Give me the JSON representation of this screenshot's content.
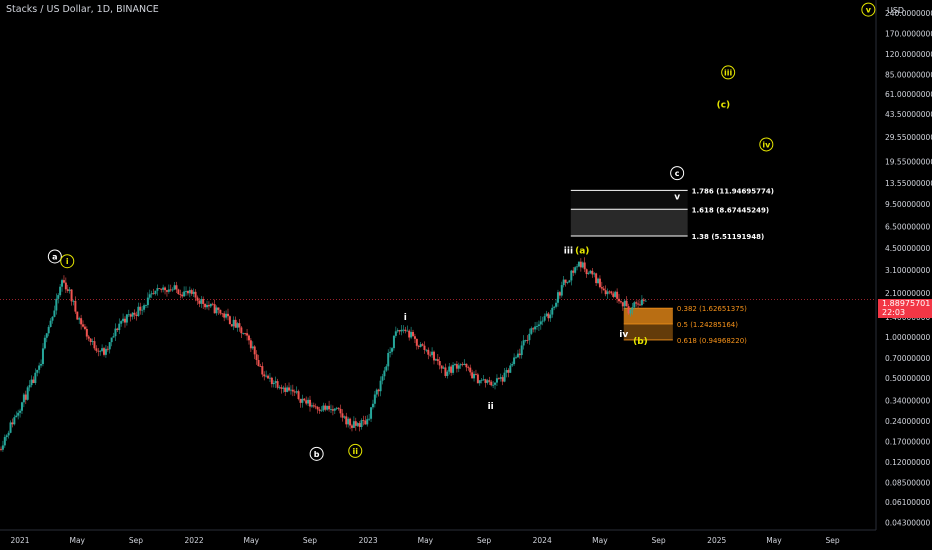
{
  "header": {
    "title": "Stacks / US Dollar, 1D, BINANCE"
  },
  "price_scale": {
    "currency": "USD"
  },
  "last_price": {
    "value": "1.88975701",
    "countdown": "22:03"
  },
  "colors": {
    "background": "#000000",
    "up": "#26a69a",
    "down": "#ef5350",
    "price_line": "#f23645",
    "wave_yellow": "#e6e600",
    "wave_white": "#ffffff",
    "fib_orange": "#f7931a",
    "text": "#d1d4dc"
  },
  "chart_data": {
    "type": "candlestick",
    "y_scale": "log",
    "ylim": [
      0.038,
      300
    ],
    "xlim": [
      "2020-11-20",
      "2025-12-01"
    ],
    "y_ticks": [
      "240.00000000",
      "170.00000000",
      "120.00000000",
      "85.00000000",
      "61.00000000",
      "43.50000000",
      "29.55000000",
      "19.55000000",
      "13.55000000",
      "9.50000000",
      "6.50000000",
      "4.50000000",
      "3.10000000",
      "2.10000000",
      "1.40000000",
      "1.00000000",
      "0.70000000",
      "0.50000000",
      "0.34000000",
      "0.24000000",
      "0.17000000",
      "0.12000000",
      "0.08500000",
      "0.06100000",
      "0.04300000"
    ],
    "x_ticks": [
      {
        "label": "2021",
        "date": "2021-01-01"
      },
      {
        "label": "May",
        "date": "2021-05-01"
      },
      {
        "label": "Sep",
        "date": "2021-09-01"
      },
      {
        "label": "2022",
        "date": "2022-01-01"
      },
      {
        "label": "May",
        "date": "2022-05-01"
      },
      {
        "label": "Sep",
        "date": "2022-09-01"
      },
      {
        "label": "2023",
        "date": "2023-01-01"
      },
      {
        "label": "May",
        "date": "2023-05-01"
      },
      {
        "label": "Sep",
        "date": "2023-09-01"
      },
      {
        "label": "2024",
        "date": "2024-01-01"
      },
      {
        "label": "May",
        "date": "2024-05-01"
      },
      {
        "label": "Sep",
        "date": "2024-09-01"
      },
      {
        "label": "2025",
        "date": "2025-01-01"
      },
      {
        "label": "May",
        "date": "2025-05-01"
      },
      {
        "label": "Sep",
        "date": "2025-09-01"
      }
    ],
    "price_path": [
      {
        "date": "2020-11-20",
        "price": 0.15
      },
      {
        "date": "2021-01-01",
        "price": 0.3
      },
      {
        "date": "2021-02-15",
        "price": 0.6
      },
      {
        "date": "2021-03-01",
        "price": 1.2
      },
      {
        "date": "2021-03-15",
        "price": 1.5
      },
      {
        "date": "2021-04-01",
        "price": 2.6
      },
      {
        "date": "2021-04-15",
        "price": 2.2
      },
      {
        "date": "2021-05-01",
        "price": 1.5
      },
      {
        "date": "2021-06-01",
        "price": 0.9
      },
      {
        "date": "2021-07-01",
        "price": 0.75
      },
      {
        "date": "2021-08-01",
        "price": 1.3
      },
      {
        "date": "2021-09-01",
        "price": 1.5
      },
      {
        "date": "2021-10-01",
        "price": 1.9
      },
      {
        "date": "2021-11-01",
        "price": 2.3
      },
      {
        "date": "2021-12-01",
        "price": 2.2
      },
      {
        "date": "2022-01-01",
        "price": 2.0
      },
      {
        "date": "2022-02-01",
        "price": 1.7
      },
      {
        "date": "2022-03-01",
        "price": 1.5
      },
      {
        "date": "2022-04-01",
        "price": 1.2
      },
      {
        "date": "2022-05-01",
        "price": 0.9
      },
      {
        "date": "2022-06-01",
        "price": 0.5
      },
      {
        "date": "2022-07-01",
        "price": 0.45
      },
      {
        "date": "2022-08-01",
        "price": 0.38
      },
      {
        "date": "2022-09-01",
        "price": 0.32
      },
      {
        "date": "2022-10-01",
        "price": 0.3
      },
      {
        "date": "2022-11-01",
        "price": 0.28
      },
      {
        "date": "2022-12-01",
        "price": 0.22
      },
      {
        "date": "2022-12-31",
        "price": 0.24
      },
      {
        "date": "2023-02-01",
        "price": 0.5
      },
      {
        "date": "2023-03-01",
        "price": 1.05
      },
      {
        "date": "2023-03-20",
        "price": 1.15
      },
      {
        "date": "2023-04-15",
        "price": 0.9
      },
      {
        "date": "2023-05-15",
        "price": 0.75
      },
      {
        "date": "2023-06-15",
        "price": 0.55
      },
      {
        "date": "2023-07-15",
        "price": 0.65
      },
      {
        "date": "2023-08-15",
        "price": 0.5
      },
      {
        "date": "2023-09-15",
        "price": 0.45
      },
      {
        "date": "2023-10-15",
        "price": 0.5
      },
      {
        "date": "2023-11-15",
        "price": 0.75
      },
      {
        "date": "2023-12-15",
        "price": 1.2
      },
      {
        "date": "2024-01-15",
        "price": 1.4
      },
      {
        "date": "2024-02-15",
        "price": 2.4
      },
      {
        "date": "2024-03-20",
        "price": 3.5
      },
      {
        "date": "2024-04-15",
        "price": 2.9
      },
      {
        "date": "2024-05-15",
        "price": 2.2
      },
      {
        "date": "2024-06-10",
        "price": 2.0
      },
      {
        "date": "2024-07-05",
        "price": 1.55
      },
      {
        "date": "2024-07-25",
        "price": 1.8
      },
      {
        "date": "2024-08-05",
        "price": 1.89
      }
    ],
    "wave_labels": [
      {
        "text": "a",
        "date": "2021-03-15",
        "price": 3.9,
        "circle": true,
        "color": "white"
      },
      {
        "text": "i",
        "date": "2021-04-10",
        "price": 3.6,
        "circle": true,
        "color": "yellow"
      },
      {
        "text": "b",
        "date": "2022-09-15",
        "price": 0.138,
        "circle": true,
        "color": "white"
      },
      {
        "text": "ii",
        "date": "2022-12-05",
        "price": 0.145,
        "circle": true,
        "color": "yellow"
      },
      {
        "text": "i",
        "date": "2023-03-20",
        "price": 1.4,
        "circle": false,
        "color": "white"
      },
      {
        "text": "ii",
        "date": "2023-09-15",
        "price": 0.31,
        "circle": false,
        "color": "white"
      },
      {
        "text": "iii",
        "date": "2024-02-25",
        "price": 4.3,
        "circle": false,
        "color": "white"
      },
      {
        "text": "(a)",
        "date": "2024-03-25",
        "price": 4.3,
        "circle": false,
        "color": "yellow"
      },
      {
        "text": "iv",
        "date": "2024-06-20",
        "price": 1.05,
        "circle": false,
        "color": "white"
      },
      {
        "text": "(b)",
        "date": "2024-07-25",
        "price": 0.93,
        "circle": false,
        "color": "yellow"
      },
      {
        "text": "v",
        "date": "2024-10-10",
        "price": 10.8,
        "circle": false,
        "color": "white"
      },
      {
        "text": "c",
        "date": "2024-10-10",
        "price": 16.0,
        "circle": true,
        "color": "white"
      },
      {
        "text": "(c)",
        "date": "2025-01-15",
        "price": 51,
        "circle": false,
        "color": "yellow"
      },
      {
        "text": "iii",
        "date": "2025-01-25",
        "price": 88,
        "circle": true,
        "color": "yellow"
      },
      {
        "text": "iv",
        "date": "2025-04-15",
        "price": 26,
        "circle": true,
        "color": "yellow"
      },
      {
        "text": "v",
        "date": "2025-11-15",
        "price": 255,
        "circle": true,
        "color": "yellow"
      }
    ],
    "fib_extensions": [
      {
        "label": "1.786 (11.94695774)",
        "price": 11.94695774
      },
      {
        "label": "1.618 (8.67445249)",
        "price": 8.67445249
      },
      {
        "label": "1.38 (5.51191948)",
        "price": 5.51191948
      }
    ],
    "fib_extension_range": {
      "from": "2024-03-01",
      "to": "2024-11-01"
    },
    "fib_retracements": [
      {
        "label": "0.382 (1.62651375)",
        "price": 1.62651375
      },
      {
        "label": "0.5 (1.24285164)",
        "price": 1.24285164
      },
      {
        "label": "0.618 (0.94968220)",
        "price": 0.9496822
      }
    ],
    "fib_retracement_range": {
      "from": "2024-06-20",
      "to": "2024-10-01"
    }
  }
}
